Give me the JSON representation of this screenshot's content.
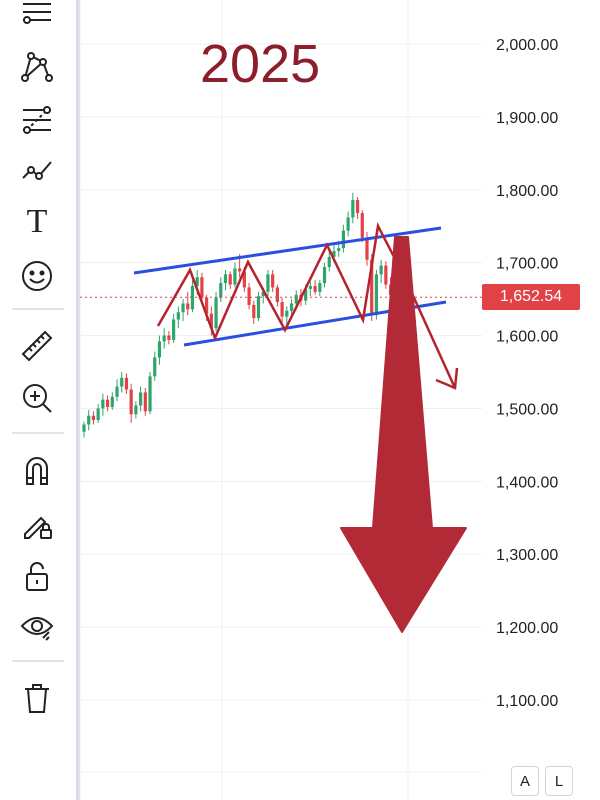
{
  "chart_data": {
    "type": "candlestick",
    "title": "2025",
    "y_ticks": [
      "2,000.00",
      "1,900.00",
      "1,800.00",
      "1,700.00",
      "1,600.00",
      "1,500.00",
      "1,400.00",
      "1,300.00",
      "1,200.00",
      "1,100.00"
    ],
    "y_tick_values": [
      2000,
      1900,
      1800,
      1700,
      1600,
      1500,
      1400,
      1300,
      1200,
      1100
    ],
    "ylim": [
      1040,
      2060
    ],
    "grid": true,
    "current_price_label": "1,652.54",
    "current_price": 1652.54,
    "price_color_up": "#2ea56b",
    "price_color_down": "#e04246",
    "annotation_color": "#b5232f",
    "channel_color": "#2a4fe0",
    "bar_count": 84,
    "candles": [
      [
        1468,
        1482,
        1460,
        1478
      ],
      [
        1478,
        1498,
        1470,
        1490
      ],
      [
        1490,
        1496,
        1478,
        1484
      ],
      [
        1484,
        1506,
        1480,
        1500
      ],
      [
        1500,
        1520,
        1490,
        1512
      ],
      [
        1512,
        1518,
        1496,
        1502
      ],
      [
        1502,
        1522,
        1498,
        1516
      ],
      [
        1516,
        1540,
        1510,
        1530
      ],
      [
        1530,
        1550,
        1522,
        1542
      ],
      [
        1542,
        1548,
        1520,
        1526
      ],
      [
        1526,
        1534,
        1480,
        1492
      ],
      [
        1492,
        1510,
        1486,
        1504
      ],
      [
        1504,
        1530,
        1496,
        1522
      ],
      [
        1522,
        1528,
        1490,
        1496
      ],
      [
        1496,
        1550,
        1492,
        1544
      ],
      [
        1544,
        1578,
        1538,
        1570
      ],
      [
        1570,
        1600,
        1560,
        1592
      ],
      [
        1592,
        1610,
        1582,
        1600
      ],
      [
        1600,
        1606,
        1588,
        1594
      ],
      [
        1594,
        1630,
        1590,
        1622
      ],
      [
        1622,
        1640,
        1610,
        1632
      ],
      [
        1632,
        1650,
        1620,
        1644
      ],
      [
        1644,
        1660,
        1628,
        1636
      ],
      [
        1636,
        1676,
        1632,
        1668
      ],
      [
        1668,
        1690,
        1656,
        1680
      ],
      [
        1680,
        1686,
        1646,
        1652
      ],
      [
        1652,
        1656,
        1620,
        1630
      ],
      [
        1630,
        1640,
        1600,
        1610
      ],
      [
        1610,
        1660,
        1606,
        1652
      ],
      [
        1652,
        1680,
        1646,
        1672
      ],
      [
        1672,
        1690,
        1662,
        1684
      ],
      [
        1684,
        1688,
        1664,
        1670
      ],
      [
        1670,
        1700,
        1666,
        1692
      ],
      [
        1692,
        1712,
        1680,
        1688
      ],
      [
        1688,
        1694,
        1660,
        1666
      ],
      [
        1666,
        1672,
        1636,
        1642
      ],
      [
        1642,
        1648,
        1616,
        1624
      ],
      [
        1624,
        1660,
        1620,
        1654
      ],
      [
        1654,
        1666,
        1644,
        1660
      ],
      [
        1660,
        1690,
        1654,
        1684
      ],
      [
        1684,
        1690,
        1660,
        1666
      ],
      [
        1666,
        1670,
        1640,
        1646
      ],
      [
        1646,
        1652,
        1618,
        1626
      ],
      [
        1626,
        1640,
        1612,
        1634
      ],
      [
        1634,
        1650,
        1626,
        1644
      ],
      [
        1644,
        1662,
        1636,
        1656
      ],
      [
        1656,
        1664,
        1640,
        1648
      ],
      [
        1648,
        1670,
        1642,
        1664
      ],
      [
        1664,
        1674,
        1654,
        1668
      ],
      [
        1668,
        1676,
        1656,
        1660
      ],
      [
        1660,
        1676,
        1654,
        1672
      ],
      [
        1672,
        1700,
        1666,
        1694
      ],
      [
        1694,
        1716,
        1688,
        1708
      ],
      [
        1708,
        1724,
        1700,
        1716
      ],
      [
        1716,
        1730,
        1708,
        1720
      ],
      [
        1720,
        1752,
        1714,
        1744
      ],
      [
        1744,
        1770,
        1736,
        1762
      ],
      [
        1762,
        1796,
        1754,
        1786
      ],
      [
        1786,
        1790,
        1760,
        1768
      ],
      [
        1768,
        1772,
        1728,
        1734
      ],
      [
        1734,
        1742,
        1696,
        1704
      ],
      [
        1704,
        1712,
        1620,
        1628
      ],
      [
        1628,
        1690,
        1622,
        1684
      ],
      [
        1684,
        1704,
        1672,
        1696
      ],
      [
        1696,
        1702,
        1664,
        1670
      ],
      [
        1670,
        1680,
        1646,
        1656
      ],
      [
        1656,
        1672,
        1648,
        1666
      ],
      [
        1666,
        1670,
        1640,
        1652
      ]
    ]
  },
  "toolbar": {
    "tools": [
      "lines-icon",
      "pattern-icon",
      "fib-icon",
      "trend-icon",
      "text-icon",
      "emoji-icon",
      "ruler-icon",
      "zoom-in-icon",
      "magnet-icon",
      "lock-draw-icon",
      "unlock-icon",
      "eye-icon",
      "trash-icon"
    ],
    "text_tool_glyph": "T",
    "emoji_glyph": "☺"
  },
  "scale_buttons": {
    "auto": "A",
    "log": "L"
  }
}
